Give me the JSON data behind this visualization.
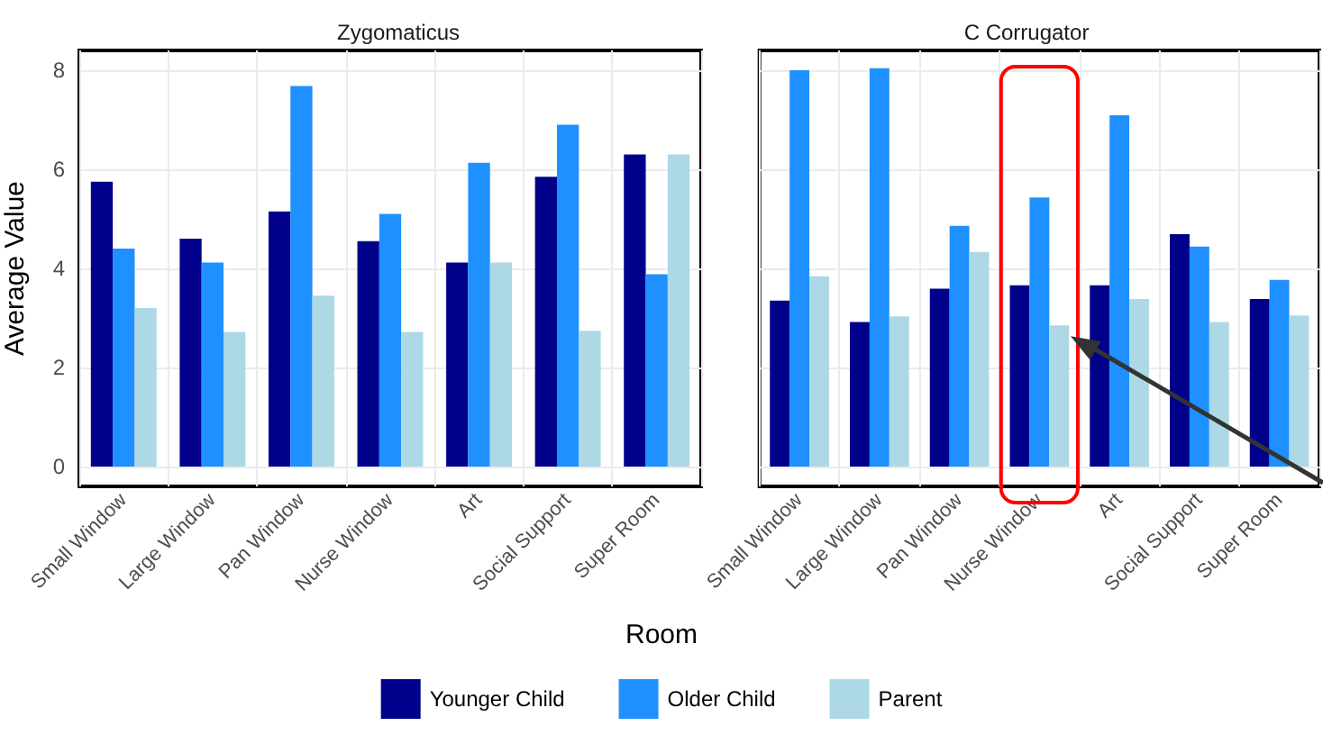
{
  "chart_data": [
    {
      "type": "bar",
      "title": "Zygomaticus",
      "xlabel": "Room",
      "ylabel": "Average Value",
      "categories": [
        "Small Window",
        "Large Window",
        "Pan Window",
        "Nurse Window",
        "Art",
        "Social Support",
        "Super Room"
      ],
      "series": [
        {
          "name": "Younger Child",
          "color": "#00008b",
          "values": [
            5.75,
            4.6,
            5.15,
            4.55,
            4.12,
            5.85,
            6.3
          ]
        },
        {
          "name": "Older Child",
          "color": "#1e90ff",
          "values": [
            4.4,
            4.12,
            7.68,
            5.1,
            6.13,
            6.9,
            3.88
          ]
        },
        {
          "name": "Parent",
          "color": "#add8e6",
          "values": [
            3.2,
            2.72,
            3.45,
            2.72,
            4.12,
            2.74,
            6.3
          ]
        }
      ],
      "ylim": [
        -0.4,
        8.4
      ],
      "yticks": [
        0,
        2,
        4,
        6,
        8
      ],
      "grid": true,
      "legend": "bottom"
    },
    {
      "type": "bar",
      "title": "C Corrugator",
      "categories": [
        "Small Window",
        "Large Window",
        "Pan Window",
        "Nurse Window",
        "Art",
        "Social Support",
        "Super Room"
      ],
      "series": [
        {
          "color": "#00008b",
          "values": [
            3.35,
            2.92,
            3.59,
            3.66,
            3.66,
            4.69,
            3.38
          ]
        },
        {
          "color": "#1e90ff",
          "values": [
            8.0,
            8.04,
            4.86,
            5.43,
            7.09,
            4.44,
            3.77
          ]
        },
        {
          "color": "#add8e6",
          "values": [
            3.84,
            3.03,
            4.33,
            2.85,
            3.38,
            2.92,
            3.05
          ]
        }
      ],
      "ylim": [
        -0.4,
        8.4
      ],
      "yticks": [
        0,
        2,
        4,
        6,
        8
      ],
      "grid": true,
      "tick_labels": "x",
      "legend": false
    }
  ]
}
